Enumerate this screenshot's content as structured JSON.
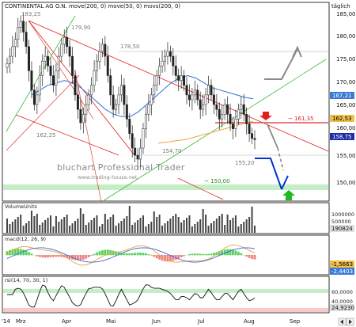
{
  "header": {
    "title": "CONTINENTAL AG O.N. move(200, 0) move(50, 0) movs(200, 0)",
    "interval": "täglich"
  },
  "colors": {
    "candle_up": "#ffffff",
    "candle_down": "#222222",
    "ma50": "#2f6fd6",
    "ma200": "#f0a23a",
    "channel_red": "#e0201c",
    "channel_green": "#3cb83c",
    "blue_projection": "#0033cc",
    "gray_projection": "#8a8a8a",
    "support_band": "#c6eec6",
    "resistance_line": "#e05050",
    "last_price_box": "#1e2ea6",
    "ma50_box": "#3b7bd6",
    "ma200_box": "#f0c04a"
  },
  "watermark": {
    "brand": "bluchart Professional Trader",
    "site": "www.trading-house.net"
  },
  "annotations": {
    "high": "183,25",
    "h2": "179,90",
    "h3": "178,50",
    "l1": "162,25",
    "l2": "154,70",
    "l3": "155,20",
    "resistance": "~ 161,35",
    "support": "~ 150,00"
  },
  "price_axis": {
    "ticks": [
      "185,00",
      "180,00",
      "175,00",
      "170,00",
      "165,00",
      "160,00",
      "155,00",
      "150,00"
    ],
    "tags": {
      "ma50": "167,21",
      "ma200": "162,53",
      "last": "158,75"
    }
  },
  "volume_panel": {
    "label": "VolumeUnits",
    "ticks": [
      "1000000",
      "500000"
    ],
    "tag": "190824"
  },
  "macd_panel": {
    "label": "macd(12, 26, 9)",
    "tags": [
      "-1,5663",
      "-2,4403"
    ]
  },
  "rsi_panel": {
    "label": "rsi(14, 70, 30, 1)",
    "ticks": [
      "60,0000",
      "40,0000"
    ],
    "tag": "24,9230"
  },
  "time_axis": {
    "labels": [
      "'14",
      "Mrz",
      "Apr",
      "Mai",
      "Jun",
      "Jul",
      "Aug",
      "Sep"
    ]
  },
  "chart_data": {
    "type": "line",
    "title": "CONTINENTAL AG O.N. move(200, 0) move(50, 0) movs(200, 0)",
    "interval": "täglich",
    "y_axis": {
      "ylim": [
        147,
        187
      ],
      "ticks": [
        185,
        180,
        175,
        170,
        165,
        160,
        155,
        150
      ]
    },
    "x_axis": {
      "labels": [
        "'14",
        "Mrz",
        "Apr",
        "Mai",
        "Jun",
        "Jul",
        "Aug",
        "Sep"
      ]
    },
    "series": [
      {
        "name": "CONTINENTAL AG O.N.",
        "kind": "candlestick-close",
        "values": [
          174.5,
          176,
          178,
          179.5,
          182,
          183.25,
          181,
          178,
          173,
          169,
          166,
          168,
          172,
          175,
          176,
          174,
          172,
          170,
          173,
          176,
          178.5,
          179.9,
          178,
          176,
          172,
          168,
          165,
          162.25,
          164,
          166,
          168,
          170,
          173,
          175,
          177,
          178.5,
          176,
          172,
          168,
          165,
          166,
          168,
          170,
          166,
          163,
          160,
          157,
          155.5,
          154.7,
          157,
          161,
          164,
          166,
          168,
          170,
          172,
          174,
          175,
          176,
          177,
          176,
          174,
          172,
          171,
          172,
          170,
          168,
          167,
          168,
          169,
          167,
          165,
          166,
          168,
          170,
          168,
          166,
          165,
          163,
          164,
          166,
          164,
          162,
          161,
          163,
          165,
          166,
          164,
          162,
          160,
          159,
          158.75
        ]
      },
      {
        "name": "move(200, 0)",
        "values": [
          158,
          158.1,
          158.2,
          158.3,
          158.4,
          158.5,
          158.6,
          158.7,
          158.8,
          159,
          159.2,
          159.4,
          159.6,
          159.8,
          160,
          160.2,
          160.4,
          160.6,
          160.8,
          161,
          161.2,
          161.4,
          161.6,
          161.8,
          162,
          162.2,
          162.4,
          162.53
        ]
      },
      {
        "name": "move(50, 0)",
        "values": [
          168,
          169,
          170,
          170.5,
          171,
          170.5,
          169.5,
          168,
          166.5,
          165,
          164,
          163.5,
          163.5,
          164.5,
          166,
          167.5,
          169,
          170.5,
          171.5,
          172,
          171.5,
          170.5,
          169.5,
          169,
          168.5,
          168,
          167.5,
          167.21
        ]
      }
    ],
    "levels": [
      {
        "value": 183.25,
        "label": "183,25"
      },
      {
        "value": 179.9,
        "label": "179,90"
      },
      {
        "value": 178.5,
        "label": "178,50"
      },
      {
        "value": 162.25,
        "label": "162,25"
      },
      {
        "value": 154.7,
        "label": "154,70"
      },
      {
        "value": 155.2,
        "label": "155,20"
      },
      {
        "value": 161.35,
        "label": "~ 161,35"
      },
      {
        "value": 150.0,
        "label": "~ 150,00"
      }
    ],
    "grid": false,
    "legend": "none"
  }
}
